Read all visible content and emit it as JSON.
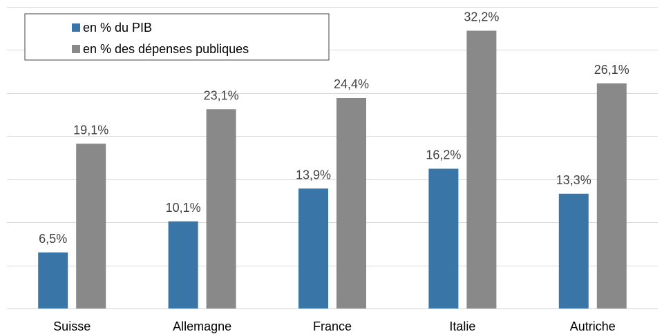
{
  "chart_data": {
    "type": "bar",
    "title": "",
    "xlabel": "",
    "ylabel": "",
    "categories": [
      "Suisse",
      "Allemagne",
      "France",
      "Italie",
      "Autriche"
    ],
    "series": [
      {
        "name": "en % du PIB",
        "color": "#3a75a8",
        "values": [
          6.5,
          10.1,
          13.9,
          16.2,
          13.3
        ],
        "labels": [
          "6,5%",
          "10,1%",
          "13,9%",
          "16,2%",
          "13,3%"
        ]
      },
      {
        "name": "en % des dépenses publiques",
        "color": "#898989",
        "values": [
          19.1,
          23.1,
          24.4,
          32.2,
          26.1
        ],
        "labels": [
          "19,1%",
          "23,1%",
          "24,4%",
          "32,2%",
          "26,1%"
        ]
      }
    ],
    "ylim": [
      0,
      35
    ],
    "y_gridline_step": 5,
    "grid": true,
    "legend_position": "top-left"
  }
}
